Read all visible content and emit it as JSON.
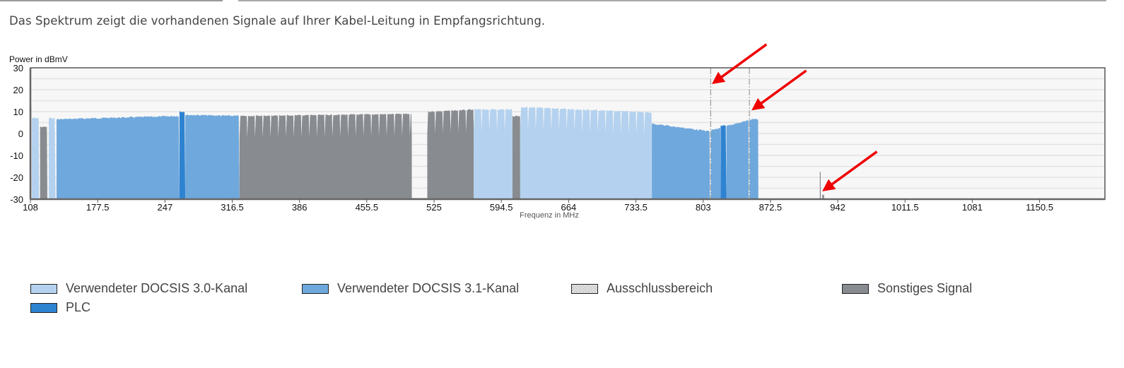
{
  "intro_text": "Das Spektrum zeigt die vorhandenen Signale auf Ihrer Kabel-Leitung in Empfangsrichtung.",
  "colors": {
    "docsis30": "#b4d2ef",
    "docsis31": "#6fa8dc",
    "plc": "#2e83d1",
    "exclusion": "#ffffff",
    "other": "#888b8f",
    "plot_bg": "#f7f7f7",
    "grid": "#e3e3e3",
    "arrow": "#ee0000"
  },
  "chart_data": {
    "type": "area",
    "title": "",
    "xlabel": "Frequenz in MHz",
    "ylabel": "Power in dBmV",
    "xlim": [
      108,
      1218
    ],
    "ylim": [
      -30,
      30
    ],
    "grid": true,
    "x_ticks": [
      "108",
      "177.5",
      "247",
      "316.5",
      "386",
      "455.5",
      "525",
      "594.5",
      "664",
      "733.5",
      "803",
      "872.5",
      "942",
      "1011.5",
      "1081",
      "1150.5"
    ],
    "x_tick_values": [
      108,
      177.5,
      247,
      316.5,
      386,
      455.5,
      525,
      594.5,
      664,
      733.5,
      803,
      872.5,
      942,
      1011.5,
      1081,
      1150.5
    ],
    "y_ticks": [
      "30",
      "20",
      "10",
      "0",
      "-10",
      "-20",
      "-30"
    ],
    "y_tick_values": [
      30,
      20,
      10,
      0,
      -10,
      -20,
      -30
    ],
    "segments": [
      {
        "type": "other",
        "start": 108,
        "end": 109,
        "level": 13
      },
      {
        "type": "docsis30",
        "start": 109.5,
        "end": 117,
        "level": 7
      },
      {
        "type": "other",
        "start": 118,
        "end": 125.5,
        "level": 3
      },
      {
        "type": "docsis30",
        "start": 127,
        "end": 134,
        "level": 7
      },
      {
        "type": "docsis31",
        "start": 135,
        "end": 262,
        "level": 6.5,
        "level_end": 8
      },
      {
        "type": "plc",
        "start": 262,
        "end": 268,
        "level": 10
      },
      {
        "type": "docsis31",
        "start": 268,
        "end": 324,
        "level": 8.5,
        "level_end": 8
      },
      {
        "type": "other",
        "start": 324,
        "end": 502,
        "level": 8,
        "level_end": 9,
        "channel_mhz": 8
      },
      {
        "type": "other",
        "start": 518,
        "end": 566,
        "level": 10,
        "level_end": 11,
        "channel_mhz": 8
      },
      {
        "type": "docsis30",
        "start": 566,
        "end": 606,
        "level": 11,
        "channel_mhz": 8
      },
      {
        "type": "other",
        "start": 606,
        "end": 614,
        "level": 8
      },
      {
        "type": "docsis30",
        "start": 614,
        "end": 750,
        "level": 12,
        "level_end": 9.5,
        "channel_mhz": 8
      },
      {
        "type": "docsis31",
        "start": 750,
        "end": 810,
        "level": 4.5,
        "level_end": 1
      },
      {
        "type": "exclusion",
        "start": 810,
        "end": 811,
        "level": 30
      },
      {
        "type": "docsis31",
        "start": 811,
        "end": 821,
        "level": 1.5,
        "level_end": 2.5
      },
      {
        "type": "plc",
        "start": 821,
        "end": 827,
        "level": 3.5
      },
      {
        "type": "docsis31",
        "start": 827,
        "end": 850,
        "level": 3.5,
        "level_end": 6
      },
      {
        "type": "exclusion",
        "start": 850,
        "end": 851,
        "level": 30
      },
      {
        "type": "docsis31",
        "start": 851,
        "end": 860,
        "level": 6.5
      },
      {
        "type": "other",
        "start": 923.5,
        "end": 924.5,
        "level": -17.5
      },
      {
        "type": "other",
        "start": 926,
        "end": 928,
        "level": -28
      }
    ],
    "legend": [
      {
        "type": "docsis30",
        "label": "Verwendeter DOCSIS 3.0-Kanal"
      },
      {
        "type": "docsis31",
        "label": "Verwendeter DOCSIS 3.1-Kanal"
      },
      {
        "type": "exclusion",
        "label": "Ausschlussbereich"
      },
      {
        "type": "other",
        "label": "Sonstiges Signal"
      },
      {
        "type": "plc",
        "label": "PLC"
      }
    ],
    "legend_position": "bottom",
    "annotations": [
      {
        "kind": "arrow",
        "points_to_mhz": 810,
        "points_to_dbmv": 22
      },
      {
        "kind": "arrow",
        "points_to_mhz": 851,
        "points_to_dbmv": 10
      },
      {
        "kind": "arrow",
        "points_to_mhz": 924,
        "points_to_dbmv": -27
      }
    ]
  }
}
